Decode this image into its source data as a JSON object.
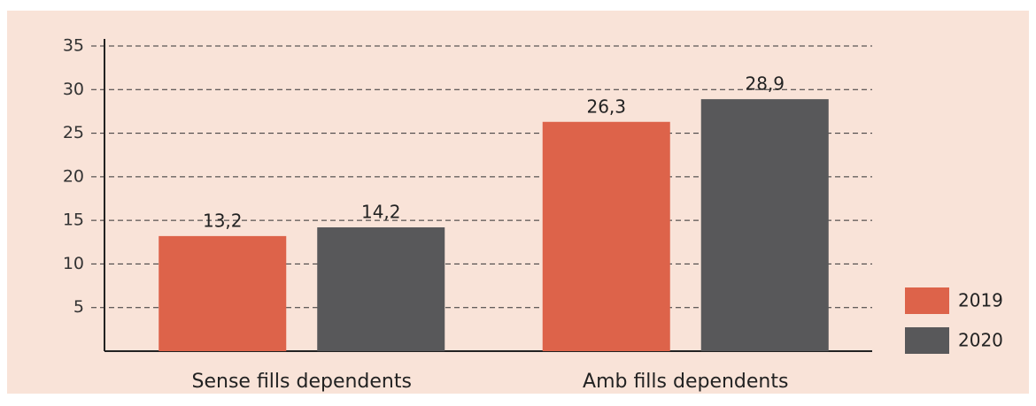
{
  "chart_data": {
    "type": "bar",
    "categories": [
      "Sense fills dependents",
      "Amb fills dependents"
    ],
    "series": [
      {
        "name": "2019",
        "color": "#dd634a",
        "values": [
          13.2,
          26.3
        ],
        "value_labels": [
          "13,2",
          "26,3"
        ]
      },
      {
        "name": "2020",
        "color": "#58585a",
        "values": [
          14.2,
          28.9
        ],
        "value_labels": [
          "14,2",
          "28,9"
        ]
      }
    ],
    "ylim": [
      0,
      35
    ],
    "yticks": [
      5,
      10,
      15,
      20,
      25,
      30,
      35
    ],
    "grid": true,
    "legend": "right"
  }
}
